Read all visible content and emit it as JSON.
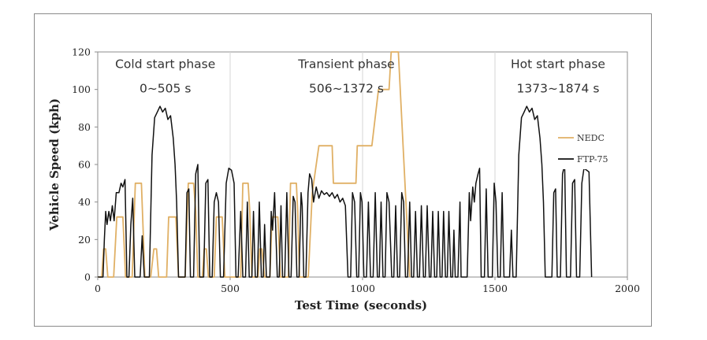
{
  "chart_data": {
    "type": "line",
    "xlabel": "Test Time (seconds)",
    "ylabel": "Vehicle Speed (kph)",
    "xlim": [
      0,
      2000
    ],
    "ylim": [
      0,
      120
    ],
    "xticks": [
      "0",
      "500",
      "1000",
      "1500",
      "2000"
    ],
    "yticks": [
      "0",
      "20",
      "40",
      "60",
      "80",
      "100",
      "120"
    ],
    "grid": "vertical",
    "legend_position": "right",
    "annotations": [
      {
        "text": "Cold start phase",
        "x": 255,
        "y": 114
      },
      {
        "text": "0~505 s",
        "x": 255,
        "y": 101
      },
      {
        "text": "Transient phase",
        "x": 939,
        "y": 114
      },
      {
        "text": "506~1372 s",
        "x": 939,
        "y": 101
      },
      {
        "text": "Hot start phase",
        "x": 1738,
        "y": 114
      },
      {
        "text": "1373~1874 s",
        "x": 1738,
        "y": 101
      }
    ],
    "series": [
      {
        "name": "NEDC",
        "color": "#e0b065",
        "points": [
          [
            0,
            0
          ],
          [
            15,
            0
          ],
          [
            22,
            15
          ],
          [
            30,
            15
          ],
          [
            38,
            0
          ],
          [
            60,
            0
          ],
          [
            72,
            32
          ],
          [
            95,
            32
          ],
          [
            105,
            0
          ],
          [
            130,
            0
          ],
          [
            142,
            50
          ],
          [
            165,
            50
          ],
          [
            178,
            0
          ],
          [
            200,
            0
          ],
          [
            212,
            15
          ],
          [
            222,
            15
          ],
          [
            230,
            0
          ],
          [
            260,
            0
          ],
          [
            268,
            32
          ],
          [
            295,
            32
          ],
          [
            305,
            0
          ],
          [
            330,
            0
          ],
          [
            342,
            50
          ],
          [
            362,
            50
          ],
          [
            370,
            35
          ],
          [
            378,
            0
          ],
          [
            395,
            0
          ],
          [
            402,
            15
          ],
          [
            410,
            15
          ],
          [
            418,
            0
          ],
          [
            440,
            0
          ],
          [
            448,
            32
          ],
          [
            470,
            32
          ],
          [
            480,
            0
          ],
          [
            540,
            0
          ],
          [
            548,
            50
          ],
          [
            568,
            50
          ],
          [
            574,
            35
          ],
          [
            582,
            0
          ],
          [
            605,
            0
          ],
          [
            612,
            15
          ],
          [
            620,
            15
          ],
          [
            630,
            0
          ],
          [
            650,
            0
          ],
          [
            658,
            32
          ],
          [
            680,
            32
          ],
          [
            690,
            0
          ],
          [
            720,
            0
          ],
          [
            728,
            50
          ],
          [
            750,
            50
          ],
          [
            755,
            35
          ],
          [
            762,
            0
          ],
          [
            795,
            0
          ],
          [
            810,
            45
          ],
          [
            835,
            70
          ],
          [
            885,
            70
          ],
          [
            890,
            50
          ],
          [
            975,
            50
          ],
          [
            980,
            70
          ],
          [
            1035,
            70
          ],
          [
            1060,
            100
          ],
          [
            1100,
            100
          ],
          [
            1108,
            120
          ],
          [
            1135,
            120
          ],
          [
            1178,
            0
          ]
        ]
      },
      {
        "name": "FTP-75",
        "color": "#111111",
        "points": [
          [
            0,
            0
          ],
          [
            20,
            0
          ],
          [
            25,
            20
          ],
          [
            30,
            35
          ],
          [
            35,
            28
          ],
          [
            42,
            35
          ],
          [
            48,
            30
          ],
          [
            55,
            38
          ],
          [
            62,
            30
          ],
          [
            70,
            45
          ],
          [
            80,
            45
          ],
          [
            88,
            50
          ],
          [
            95,
            48
          ],
          [
            103,
            52
          ],
          [
            110,
            0
          ],
          [
            118,
            0
          ],
          [
            125,
            28
          ],
          [
            132,
            42
          ],
          [
            140,
            0
          ],
          [
            160,
            0
          ],
          [
            168,
            22
          ],
          [
            176,
            0
          ],
          [
            195,
            0
          ],
          [
            205,
            65
          ],
          [
            215,
            85
          ],
          [
            225,
            88
          ],
          [
            235,
            91
          ],
          [
            245,
            88
          ],
          [
            255,
            90
          ],
          [
            265,
            84
          ],
          [
            275,
            86
          ],
          [
            285,
            74
          ],
          [
            292,
            60
          ],
          [
            298,
            40
          ],
          [
            305,
            0
          ],
          [
            330,
            0
          ],
          [
            337,
            45
          ],
          [
            344,
            47
          ],
          [
            350,
            0
          ],
          [
            362,
            0
          ],
          [
            370,
            55
          ],
          [
            378,
            60
          ],
          [
            385,
            0
          ],
          [
            400,
            0
          ],
          [
            408,
            50
          ],
          [
            416,
            52
          ],
          [
            423,
            0
          ],
          [
            432,
            0
          ],
          [
            440,
            40
          ],
          [
            448,
            45
          ],
          [
            456,
            40
          ],
          [
            463,
            0
          ],
          [
            475,
            0
          ],
          [
            485,
            50
          ],
          [
            495,
            58
          ],
          [
            505,
            57
          ],
          [
            515,
            50
          ],
          [
            522,
            0
          ],
          [
            530,
            0
          ],
          [
            540,
            35
          ],
          [
            548,
            0
          ],
          [
            558,
            0
          ],
          [
            565,
            40
          ],
          [
            572,
            0
          ],
          [
            582,
            0
          ],
          [
            588,
            35
          ],
          [
            595,
            0
          ],
          [
            603,
            0
          ],
          [
            610,
            40
          ],
          [
            618,
            0
          ],
          [
            625,
            0
          ],
          [
            630,
            28
          ],
          [
            637,
            0
          ],
          [
            650,
            0
          ],
          [
            655,
            35
          ],
          [
            660,
            25
          ],
          [
            668,
            45
          ],
          [
            678,
            0
          ],
          [
            685,
            0
          ],
          [
            692,
            38
          ],
          [
            698,
            0
          ],
          [
            706,
            0
          ],
          [
            714,
            45
          ],
          [
            722,
            0
          ],
          [
            730,
            0
          ],
          [
            738,
            43
          ],
          [
            745,
            40
          ],
          [
            752,
            0
          ],
          [
            760,
            0
          ],
          [
            768,
            45
          ],
          [
            772,
            38
          ],
          [
            778,
            0
          ],
          [
            786,
            0
          ],
          [
            794,
            45
          ],
          [
            800,
            55
          ],
          [
            808,
            52
          ],
          [
            815,
            40
          ],
          [
            825,
            48
          ],
          [
            835,
            42
          ],
          [
            845,
            46
          ],
          [
            855,
            44
          ],
          [
            865,
            45
          ],
          [
            875,
            43
          ],
          [
            885,
            45
          ],
          [
            895,
            42
          ],
          [
            905,
            44
          ],
          [
            915,
            40
          ],
          [
            925,
            42
          ],
          [
            935,
            38
          ],
          [
            945,
            0
          ],
          [
            955,
            0
          ],
          [
            962,
            45
          ],
          [
            970,
            40
          ],
          [
            978,
            0
          ],
          [
            985,
            0
          ],
          [
            992,
            45
          ],
          [
            998,
            40
          ],
          [
            1005,
            0
          ],
          [
            1015,
            0
          ],
          [
            1022,
            40
          ],
          [
            1030,
            0
          ],
          [
            1040,
            0
          ],
          [
            1048,
            45
          ],
          [
            1056,
            0
          ],
          [
            1063,
            0
          ],
          [
            1070,
            40
          ],
          [
            1077,
            0
          ],
          [
            1085,
            0
          ],
          [
            1092,
            45
          ],
          [
            1100,
            40
          ],
          [
            1110,
            0
          ],
          [
            1118,
            0
          ],
          [
            1125,
            38
          ],
          [
            1132,
            0
          ],
          [
            1140,
            0
          ],
          [
            1148,
            45
          ],
          [
            1155,
            40
          ],
          [
            1162,
            0
          ],
          [
            1170,
            0
          ],
          [
            1178,
            40
          ],
          [
            1185,
            0
          ],
          [
            1193,
            0
          ],
          [
            1200,
            35
          ],
          [
            1207,
            0
          ],
          [
            1215,
            0
          ],
          [
            1222,
            38
          ],
          [
            1230,
            0
          ],
          [
            1237,
            0
          ],
          [
            1244,
            38
          ],
          [
            1252,
            0
          ],
          [
            1258,
            0
          ],
          [
            1265,
            35
          ],
          [
            1272,
            0
          ],
          [
            1280,
            0
          ],
          [
            1286,
            35
          ],
          [
            1293,
            0
          ],
          [
            1300,
            0
          ],
          [
            1306,
            35
          ],
          [
            1313,
            0
          ],
          [
            1320,
            0
          ],
          [
            1326,
            35
          ],
          [
            1333,
            0
          ],
          [
            1340,
            0
          ],
          [
            1345,
            25
          ],
          [
            1350,
            0
          ],
          [
            1360,
            0
          ],
          [
            1368,
            40
          ],
          [
            1372,
            0
          ],
          [
            1395,
            0
          ],
          [
            1403,
            45
          ],
          [
            1408,
            30
          ],
          [
            1416,
            48
          ],
          [
            1422,
            40
          ],
          [
            1428,
            50
          ],
          [
            1436,
            55
          ],
          [
            1442,
            58
          ],
          [
            1448,
            0
          ],
          [
            1460,
            0
          ],
          [
            1467,
            47
          ],
          [
            1474,
            0
          ],
          [
            1490,
            0
          ],
          [
            1497,
            50
          ],
          [
            1504,
            40
          ],
          [
            1511,
            0
          ],
          [
            1520,
            0
          ],
          [
            1527,
            45
          ],
          [
            1534,
            0
          ],
          [
            1555,
            0
          ],
          [
            1562,
            25
          ],
          [
            1568,
            0
          ],
          [
            1580,
            0
          ],
          [
            1590,
            65
          ],
          [
            1600,
            85
          ],
          [
            1610,
            88
          ],
          [
            1620,
            91
          ],
          [
            1630,
            88
          ],
          [
            1640,
            90
          ],
          [
            1650,
            84
          ],
          [
            1660,
            86
          ],
          [
            1670,
            74
          ],
          [
            1677,
            60
          ],
          [
            1683,
            40
          ],
          [
            1690,
            0
          ],
          [
            1715,
            0
          ],
          [
            1722,
            45
          ],
          [
            1729,
            47
          ],
          [
            1735,
            0
          ],
          [
            1747,
            0
          ],
          [
            1755,
            55
          ],
          [
            1763,
            60
          ],
          [
            1770,
            0
          ],
          [
            1785,
            0
          ],
          [
            1793,
            50
          ],
          [
            1801,
            52
          ],
          [
            1808,
            0
          ],
          [
            1820,
            0
          ],
          [
            1828,
            50
          ],
          [
            1836,
            58
          ],
          [
            1846,
            57
          ],
          [
            1855,
            56
          ],
          [
            1865,
            0
          ]
        ]
      }
    ]
  }
}
